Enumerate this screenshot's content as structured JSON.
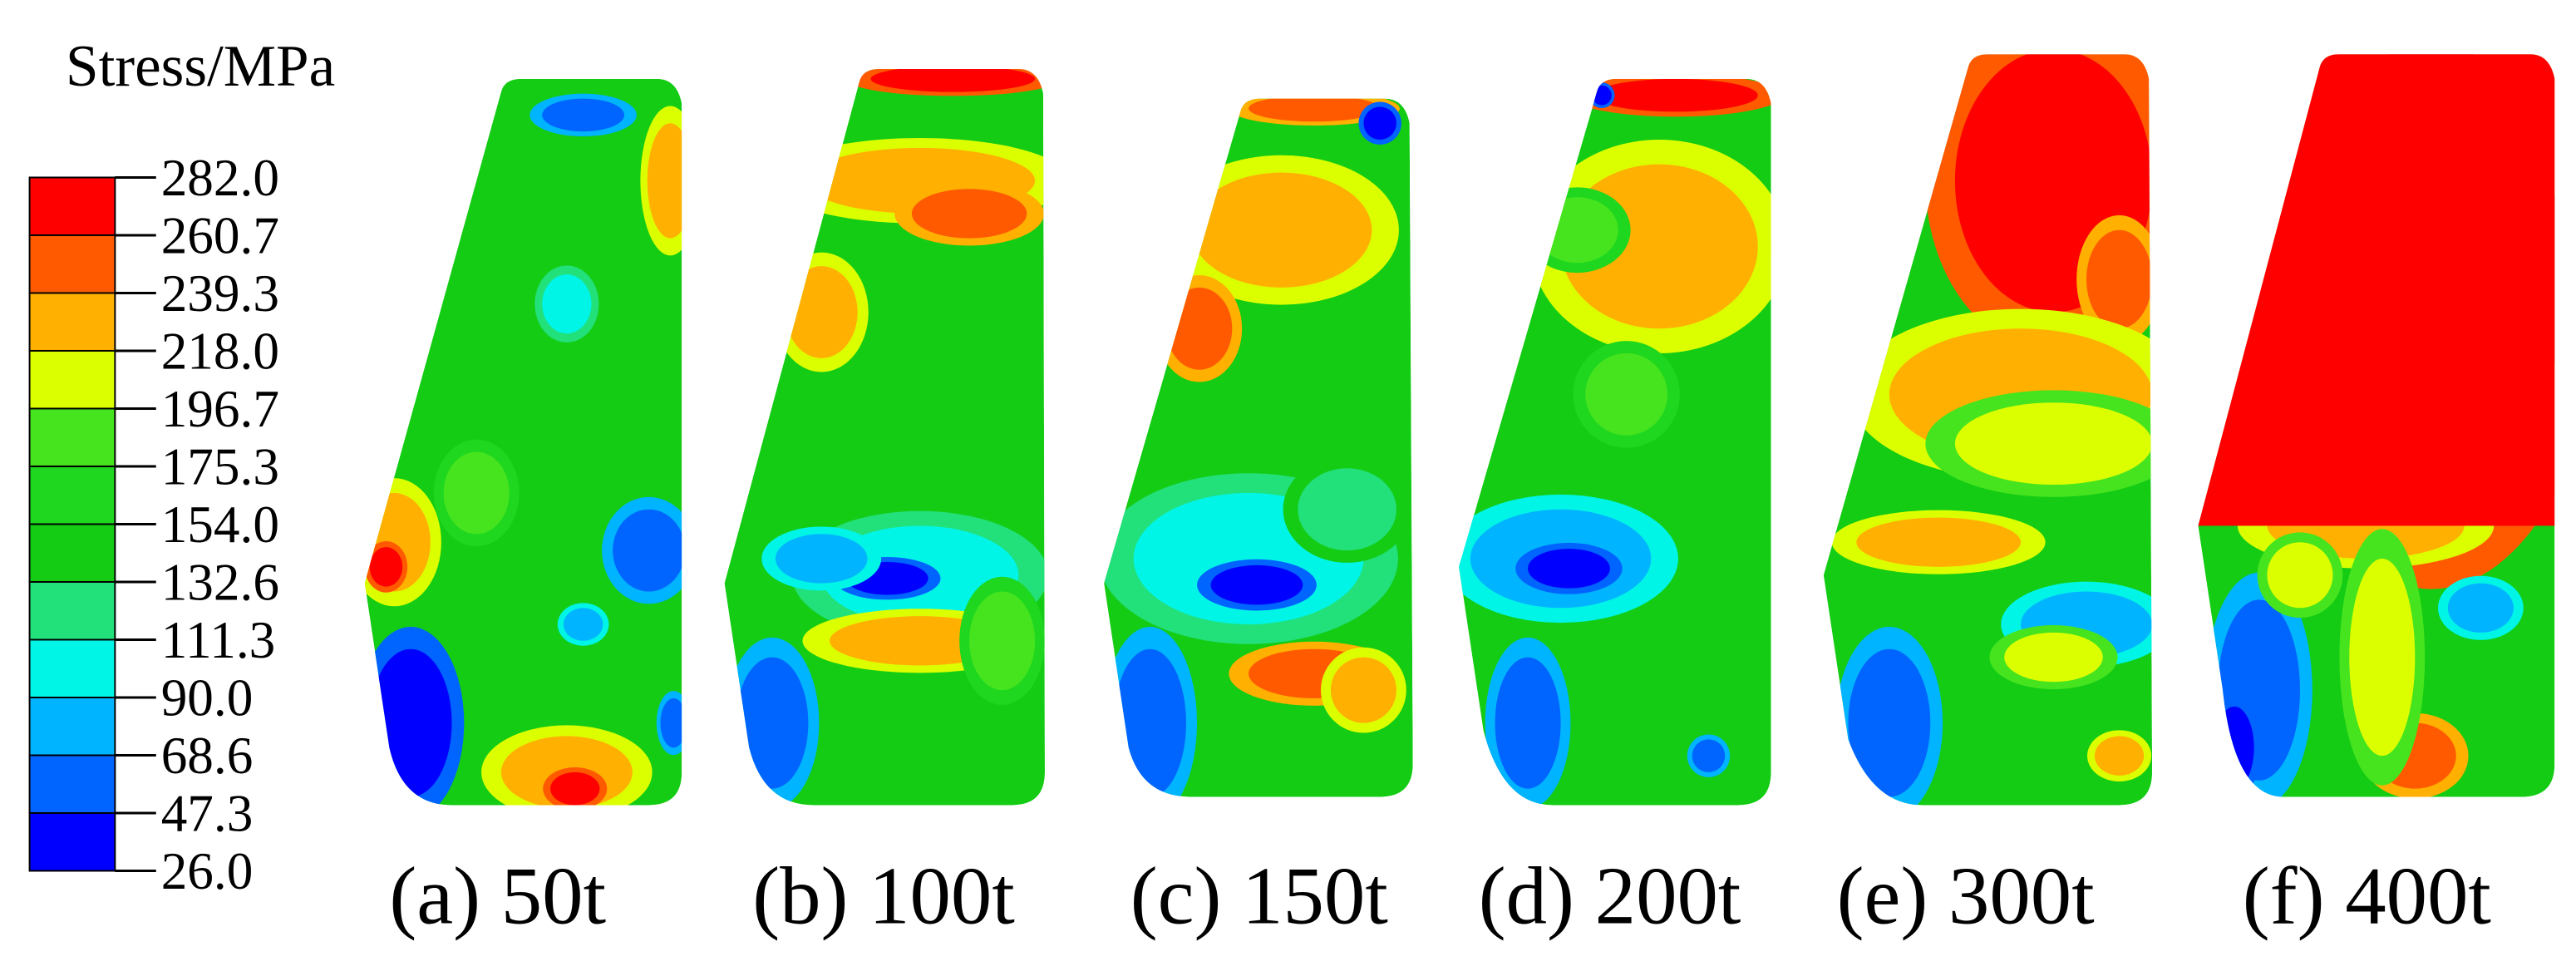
{
  "legend": {
    "title": "Stress/MPa",
    "labels": [
      "282.0",
      "260.7",
      "239.3",
      "218.0",
      "196.7",
      "175.3",
      "154.0",
      "132.6",
      "111.3",
      "90.0",
      "68.6",
      "47.3",
      "26.0"
    ],
    "colors": [
      "#ff0000",
      "#ff5a00",
      "#ffb000",
      "#dcff00",
      "#46e41e",
      "#1ed71e",
      "#14cc14",
      "#22e07a",
      "#00f5e6",
      "#00b4ff",
      "#0064ff",
      "#0000ff"
    ]
  },
  "panels": [
    {
      "label": "(a) 50t"
    },
    {
      "label": "(b) 100t"
    },
    {
      "label": "(c) 150t"
    },
    {
      "label": "(d) 200t"
    },
    {
      "label": "(e) 300t"
    },
    {
      "label": "(f) 400t"
    }
  ]
}
